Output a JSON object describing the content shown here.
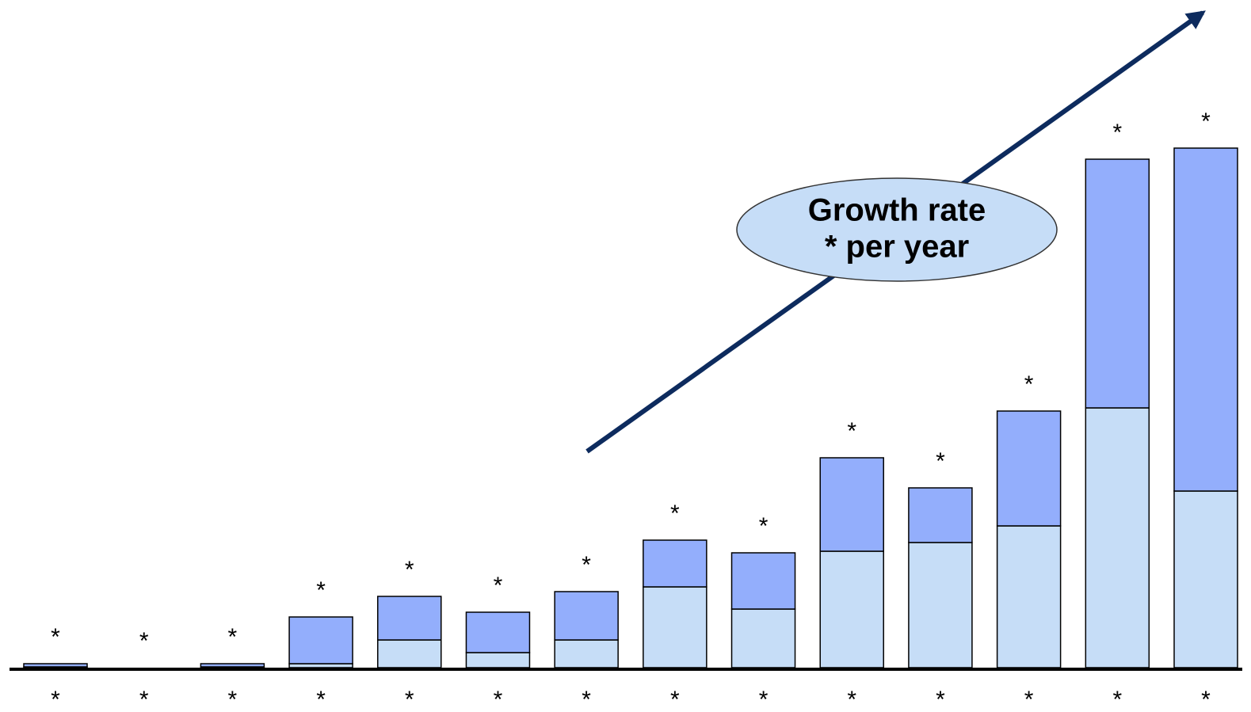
{
  "chart_data": {
    "type": "bar",
    "stacked": true,
    "categories": [
      "*",
      "*",
      "*",
      "*",
      "*",
      "*",
      "*",
      "*",
      "*",
      "*",
      "*",
      "*",
      "*",
      "*"
    ],
    "series": [
      {
        "color": "#c6ddf7",
        "values": [
          1,
          0,
          1,
          5,
          35,
          19,
          35,
          102,
          74,
          147,
          158,
          179,
          328,
          223
        ]
      },
      {
        "color": "#93aefc",
        "values": [
          4,
          0,
          4,
          59,
          55,
          51,
          61,
          59,
          71,
          118,
          69,
          145,
          314,
          433
        ]
      }
    ],
    "total_labels": [
      "*",
      "*",
      "*",
      "*",
      "*",
      "*",
      "*",
      "*",
      "*",
      "*",
      "*",
      "*",
      "*",
      "*"
    ],
    "ylim": [
      0,
      843
    ],
    "annotation": [
      "Growth rate",
      "* per year"
    ]
  }
}
